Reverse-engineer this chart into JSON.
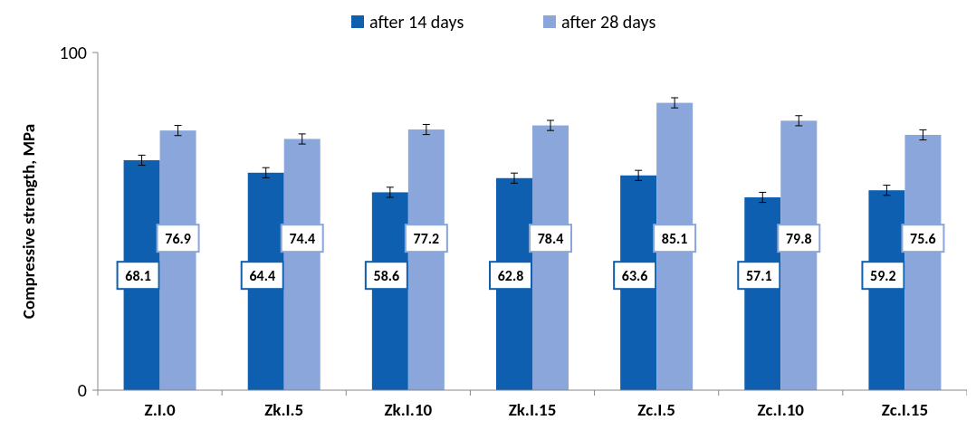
{
  "chart_data": {
    "type": "bar",
    "ylabel": "Compressive strength, MPa",
    "categories": [
      "Z.I.0",
      "Zk.I.5",
      "Zk.I.10",
      "Zk.I.15",
      "Zc.I.5",
      "Zc.I.10",
      "Zc.I.15"
    ],
    "series": [
      {
        "name": "after 14 days",
        "color": "#0f5fb0",
        "values": [
          68.1,
          64.4,
          58.6,
          62.8,
          63.6,
          57.1,
          59.2
        ],
        "errors": [
          1.5,
          1.5,
          1.5,
          1.5,
          1.5,
          1.5,
          1.5
        ]
      },
      {
        "name": "after 28 days",
        "color": "#8aa6da",
        "values": [
          76.9,
          74.4,
          77.2,
          78.4,
          85.1,
          79.8,
          75.6
        ],
        "errors": [
          1.5,
          1.5,
          1.5,
          1.5,
          1.5,
          1.5,
          1.5
        ]
      }
    ],
    "ylim": [
      0,
      100
    ],
    "yticks": [
      0,
      100
    ],
    "grid": false,
    "legend": "top",
    "data_labels": true
  }
}
